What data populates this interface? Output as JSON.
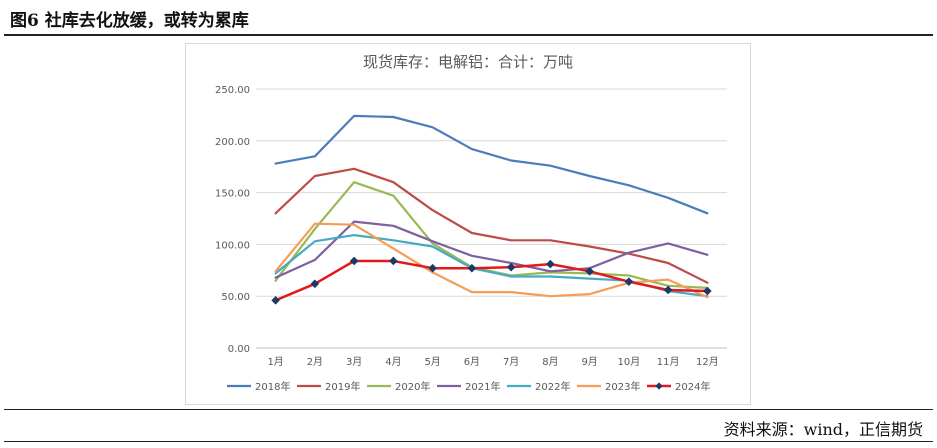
{
  "figure": {
    "title": "图6 社库去化放缓，或转为累库",
    "source": "资料来源：wind，正信期货"
  },
  "chart_data": {
    "type": "line",
    "title": "现货库存：电解铝：合计：万吨",
    "categories": [
      "1月",
      "2月",
      "3月",
      "4月",
      "5月",
      "6月",
      "7月",
      "8月",
      "9月",
      "10月",
      "11月",
      "12月"
    ],
    "ylim": [
      0,
      250
    ],
    "yticks": [
      "0.00",
      "50.00",
      "100.00",
      "150.00",
      "200.00",
      "250.00"
    ],
    "grid": true,
    "legend_position": "bottom",
    "series": [
      {
        "name": "2018年",
        "color": "#4a7ebb",
        "markers": false,
        "values": [
          178,
          185,
          224,
          223,
          213,
          192,
          181,
          176,
          166,
          157,
          145,
          130
        ]
      },
      {
        "name": "2019年",
        "color": "#be4b48",
        "markers": false,
        "values": [
          130,
          166,
          173,
          160,
          133,
          111,
          104,
          104,
          98,
          91,
          82,
          63
        ]
      },
      {
        "name": "2020年",
        "color": "#98b954",
        "markers": false,
        "values": [
          65,
          115,
          160,
          147,
          101,
          78,
          70,
          73,
          72,
          70,
          60,
          58
        ]
      },
      {
        "name": "2021年",
        "color": "#7d60a0",
        "markers": false,
        "values": [
          68,
          85,
          122,
          118,
          103,
          89,
          82,
          74,
          77,
          92,
          101,
          90
        ]
      },
      {
        "name": "2022年",
        "color": "#46aac4",
        "markers": false,
        "values": [
          72,
          103,
          109,
          104,
          98,
          77,
          69,
          69,
          67,
          65,
          55,
          50
        ]
      },
      {
        "name": "2023年",
        "color": "#f59d56",
        "markers": false,
        "values": [
          74,
          120,
          119,
          96,
          73,
          54,
          54,
          50,
          52,
          63,
          66,
          49
        ]
      },
      {
        "name": "2024年",
        "color": "#e31a1c",
        "markers": true,
        "marker_color": "#1f3864",
        "values": [
          46,
          62,
          84,
          84,
          77,
          77,
          78,
          81,
          74,
          64,
          56,
          55
        ]
      }
    ]
  }
}
